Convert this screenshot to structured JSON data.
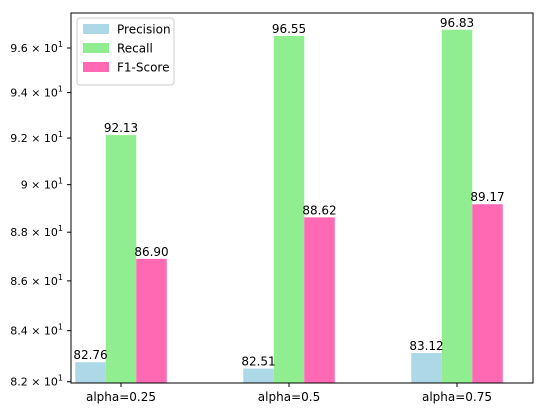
{
  "chart_data": {
    "type": "bar",
    "categories": [
      "alpha=0.25",
      "alpha=0.5",
      "alpha=0.75"
    ],
    "series": [
      {
        "name": "Precision",
        "color": "#add8e6",
        "values": [
          82.76,
          82.51,
          83.12
        ]
      },
      {
        "name": "Recall",
        "color": "#90ee90",
        "values": [
          92.13,
          96.55,
          96.83
        ]
      },
      {
        "name": "F1-Score",
        "color": "#ff69b4",
        "values": [
          86.9,
          88.62,
          89.17
        ]
      }
    ],
    "data_labels": [
      [
        "82.76",
        "82.51",
        "83.12"
      ],
      [
        "92.13",
        "96.55",
        "96.83"
      ],
      [
        "86.90",
        "88.62",
        "89.17"
      ]
    ],
    "ylim": [
      81.95,
      97.6
    ],
    "y_scale": "log",
    "yticks": [
      {
        "value": 82,
        "mantissa": "8.2"
      },
      {
        "value": 84,
        "mantissa": "8.4"
      },
      {
        "value": 86,
        "mantissa": "8.6"
      },
      {
        "value": 88,
        "mantissa": "8.8"
      },
      {
        "value": 90,
        "mantissa": "9"
      },
      {
        "value": 92,
        "mantissa": "9.2"
      },
      {
        "value": 94,
        "mantissa": "9.4"
      },
      {
        "value": 96,
        "mantissa": "9.6"
      }
    ],
    "ytick_base": "10",
    "ytick_exponent": "1",
    "legend_position": "top-left",
    "grid": false,
    "title": "",
    "xlabel": "",
    "ylabel": ""
  }
}
